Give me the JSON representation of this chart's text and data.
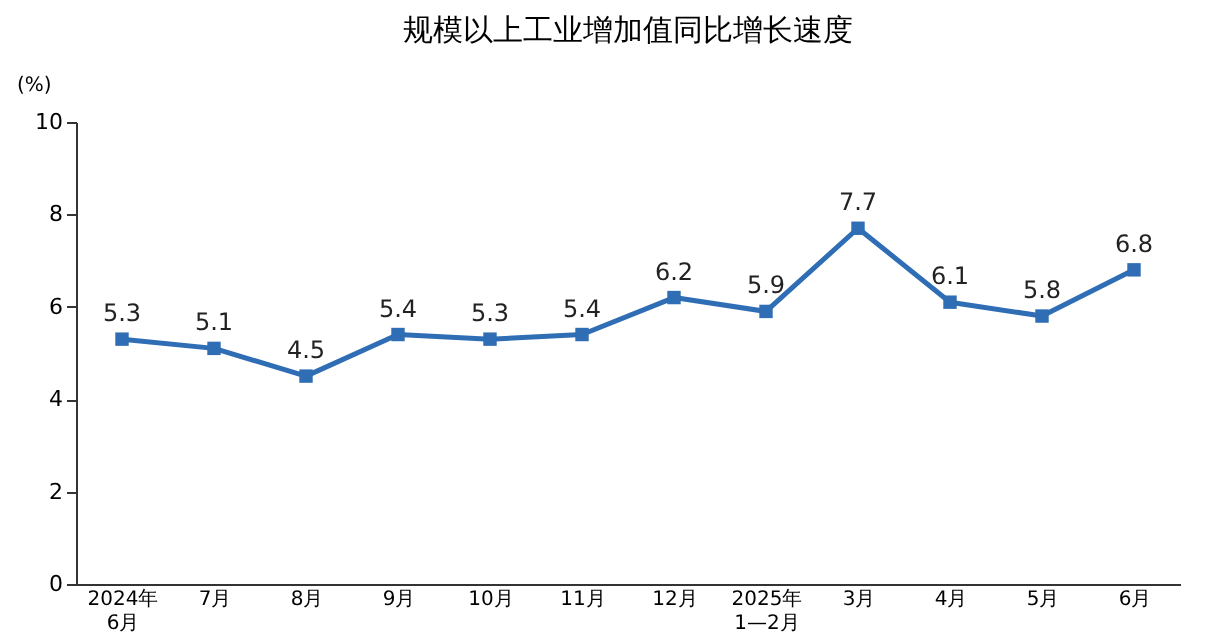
{
  "chart_data": {
    "type": "line",
    "title": "规模以上工业增加值同比增长速度",
    "ylabel": "(%)",
    "categories": [
      "2024年\n6月",
      "7月",
      "8月",
      "9月",
      "10月",
      "11月",
      "12月",
      "2025年\n1—2月",
      "3月",
      "4月",
      "5月",
      "6月"
    ],
    "series": [
      {
        "color": "#2f6db5",
        "values": [
          5.3,
          5.1,
          4.5,
          5.4,
          5.3,
          5.4,
          6.2,
          5.9,
          7.7,
          6.1,
          5.8,
          6.8
        ]
      }
    ],
    "ylim": [
      0,
      10
    ],
    "yticks": [
      0,
      2,
      4,
      6,
      8,
      10
    ],
    "grid": false,
    "legend": false,
    "marker": "square",
    "line_style": "solid",
    "data_labels": true
  }
}
